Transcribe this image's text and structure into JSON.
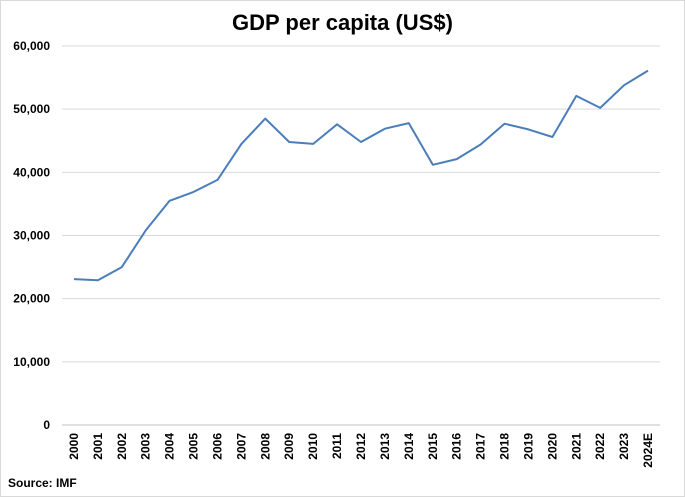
{
  "chart_data": {
    "type": "line",
    "title": "GDP per capita (US$)",
    "xlabel": "",
    "ylabel": "",
    "source": "Source: IMF",
    "categories": [
      "2000",
      "2001",
      "2002",
      "2003",
      "2004",
      "2005",
      "2006",
      "2007",
      "2008",
      "2009",
      "2010",
      "2011",
      "2012",
      "2013",
      "2014",
      "2015",
      "2016",
      "2017",
      "2018",
      "2019",
      "2020",
      "2021",
      "2022",
      "2023",
      "2024E"
    ],
    "series": [
      {
        "values": [
          23100,
          22900,
          25000,
          30800,
          35500,
          36900,
          38800,
          44500,
          48500,
          44800,
          44500,
          47600,
          44800,
          46900,
          47800,
          41200,
          42100,
          44400,
          47700,
          46800,
          45600,
          52100,
          50200,
          53800,
          56100
        ],
        "color": "#4a7ebb"
      }
    ],
    "ylim": [
      0,
      60000
    ],
    "yticks": [
      "0",
      "10,000",
      "20,000",
      "30,000",
      "40,000",
      "50,000",
      "60,000"
    ],
    "grid": true,
    "legend": "none"
  }
}
